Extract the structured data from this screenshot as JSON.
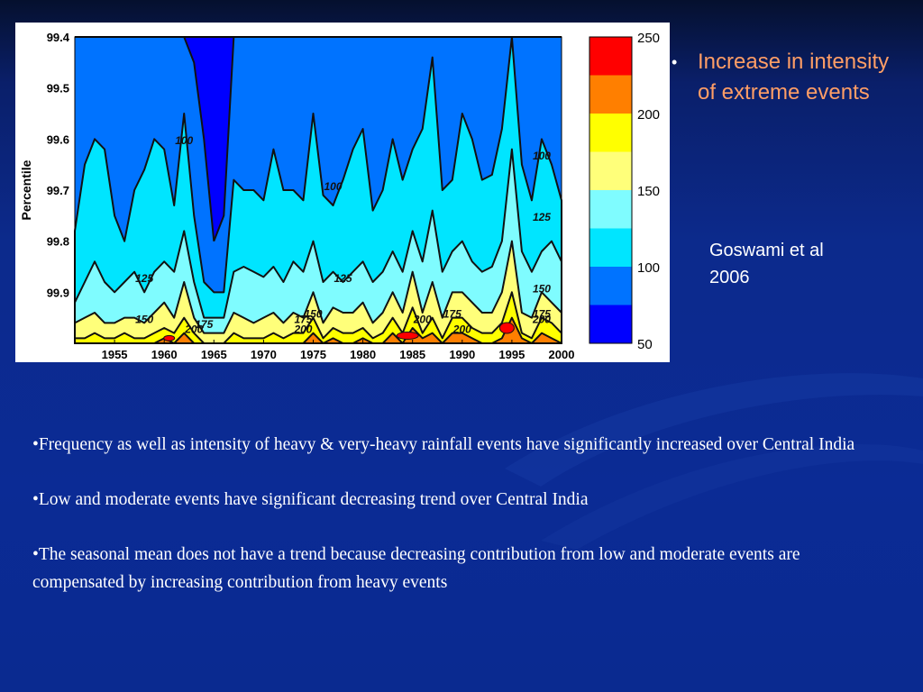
{
  "slide": {
    "heading_bullet": "•",
    "heading": "Increase in intensity of extreme events",
    "citation_line1": "Goswami et al",
    "citation_line2": "2006",
    "bullets": [
      "•Frequency as well as intensity of heavy & very-heavy rainfall events have significantly increased over Central India",
      "•Low and moderate events have significant decreasing trend over Central India",
      "•The seasonal mean does not have a trend because decreasing contribution from low and moderate events are compensated by increasing contribution from heavy events"
    ]
  },
  "colors": {
    "text_accent": "#ff9e66",
    "text_main": "#ffffff",
    "background": "#0b2b95"
  },
  "chart_data": {
    "type": "heatmap",
    "subtype": "filled-contour",
    "title": "",
    "xlabel": "",
    "ylabel": "Percentile",
    "x_ticks": [
      "1955",
      "1960",
      "1965",
      "1970",
      "1975",
      "1980",
      "1985",
      "1990",
      "1995",
      "2000"
    ],
    "y_ticks": [
      "99.4",
      "99.5",
      "99.6",
      "99.7",
      "99.8",
      "99.9"
    ],
    "xlim": [
      1951,
      2000
    ],
    "ylim": [
      99.4,
      100.0
    ],
    "y_reversed": true,
    "colorbar": {
      "ticks": [
        "250",
        "200",
        "150",
        "100",
        "50"
      ],
      "levels": [
        50,
        75,
        100,
        125,
        150,
        175,
        200,
        225,
        250
      ],
      "colors": [
        "#0000ff",
        "#0073ff",
        "#00e5ff",
        "#7ffcff",
        "#ffff7a",
        "#ffff00",
        "#ff7f00",
        "#ff0000"
      ]
    },
    "contour_labels": [
      {
        "text": "100",
        "year": 1962,
        "pct": 99.61
      },
      {
        "text": "100",
        "year": 1977,
        "pct": 99.7
      },
      {
        "text": "100",
        "year": 1998,
        "pct": 99.64
      },
      {
        "text": "125",
        "year": 1958,
        "pct": 99.88
      },
      {
        "text": "125",
        "year": 1978,
        "pct": 99.88
      },
      {
        "text": "125",
        "year": 1998,
        "pct": 99.76
      },
      {
        "text": "150",
        "year": 1998,
        "pct": 99.9
      },
      {
        "text": "150",
        "year": 1958,
        "pct": 99.96
      },
      {
        "text": "150",
        "year": 1975,
        "pct": 99.95
      },
      {
        "text": "175",
        "year": 1964,
        "pct": 99.97
      },
      {
        "text": "175",
        "year": 1974,
        "pct": 99.96
      },
      {
        "text": "175",
        "year": 1989,
        "pct": 99.95
      },
      {
        "text": "175",
        "year": 1998,
        "pct": 99.95
      },
      {
        "text": "200",
        "year": 1963,
        "pct": 99.98
      },
      {
        "text": "200",
        "year": 1974,
        "pct": 99.98
      },
      {
        "text": "200",
        "year": 1986,
        "pct": 99.96
      },
      {
        "text": "200",
        "year": 1990,
        "pct": 99.98
      },
      {
        "text": "200",
        "year": 1998,
        "pct": 99.96
      }
    ],
    "contour_boundaries_pct": {
      "years": [
        1951,
        1952,
        1953,
        1954,
        1955,
        1956,
        1957,
        1958,
        1959,
        1960,
        1961,
        1962,
        1963,
        1964,
        1965,
        1966,
        1967,
        1968,
        1969,
        1970,
        1971,
        1972,
        1973,
        1974,
        1975,
        1976,
        1977,
        1978,
        1979,
        1980,
        1981,
        1982,
        1983,
        1984,
        1985,
        1986,
        1987,
        1988,
        1989,
        1990,
        1991,
        1992,
        1993,
        1994,
        1995,
        1996,
        1997,
        1998,
        1999,
        2000
      ],
      "c75": [
        99.4,
        99.4,
        99.4,
        99.4,
        99.4,
        99.4,
        99.4,
        99.4,
        99.4,
        99.4,
        99.4,
        99.4,
        99.45,
        99.6,
        99.8,
        99.75,
        99.4,
        99.4,
        99.4,
        99.4,
        99.4,
        99.4,
        99.4,
        99.4,
        99.4,
        99.4,
        99.4,
        99.4,
        99.4,
        99.4,
        99.4,
        99.4,
        99.4,
        99.4,
        99.4,
        99.4,
        99.4,
        99.4,
        99.4,
        99.4,
        99.4,
        99.4,
        99.4,
        99.4,
        99.4,
        99.4,
        99.4,
        99.4,
        99.4,
        99.4
      ],
      "c100": [
        99.78,
        99.65,
        99.6,
        99.62,
        99.75,
        99.8,
        99.7,
        99.66,
        99.6,
        99.62,
        99.73,
        99.55,
        99.75,
        99.88,
        99.9,
        99.9,
        99.68,
        99.7,
        99.7,
        99.72,
        99.62,
        99.7,
        99.7,
        99.72,
        99.55,
        99.71,
        99.73,
        99.68,
        99.62,
        99.58,
        99.74,
        99.7,
        99.6,
        99.68,
        99.62,
        99.58,
        99.44,
        99.7,
        99.68,
        99.55,
        99.6,
        99.68,
        99.67,
        99.58,
        99.4,
        99.65,
        99.72,
        99.6,
        99.65,
        99.72
      ],
      "c125": [
        99.92,
        99.88,
        99.84,
        99.88,
        99.9,
        99.88,
        99.86,
        99.9,
        99.86,
        99.84,
        99.86,
        99.78,
        99.88,
        99.95,
        99.95,
        99.95,
        99.86,
        99.85,
        99.86,
        99.87,
        99.85,
        99.88,
        99.84,
        99.86,
        99.8,
        99.88,
        99.86,
        99.88,
        99.86,
        99.84,
        99.88,
        99.86,
        99.82,
        99.86,
        99.78,
        99.84,
        99.74,
        99.86,
        99.82,
        99.8,
        99.84,
        99.86,
        99.85,
        99.8,
        99.62,
        99.82,
        99.86,
        99.82,
        99.8,
        99.84
      ],
      "c150": [
        99.96,
        99.95,
        99.94,
        99.96,
        99.96,
        99.95,
        99.95,
        99.96,
        99.94,
        99.92,
        99.95,
        99.88,
        99.95,
        99.98,
        99.98,
        99.98,
        99.94,
        99.95,
        99.96,
        99.95,
        99.94,
        99.96,
        99.94,
        99.95,
        99.9,
        99.96,
        99.93,
        99.94,
        99.94,
        99.92,
        99.96,
        99.94,
        99.9,
        99.94,
        99.86,
        99.94,
        99.88,
        99.95,
        99.9,
        99.9,
        99.92,
        99.94,
        99.94,
        99.9,
        99.8,
        99.94,
        99.95,
        99.9,
        99.92,
        99.94
      ],
      "c175": [
        99.99,
        99.99,
        99.98,
        99.99,
        99.99,
        99.98,
        99.99,
        99.99,
        99.98,
        99.97,
        99.98,
        99.95,
        99.98,
        100.0,
        100.0,
        100.0,
        99.98,
        99.99,
        99.99,
        99.99,
        99.98,
        99.99,
        99.98,
        99.98,
        99.95,
        99.99,
        99.97,
        99.98,
        99.98,
        99.97,
        99.99,
        99.98,
        99.95,
        99.98,
        99.93,
        99.98,
        99.95,
        99.99,
        99.95,
        99.95,
        99.97,
        99.98,
        99.98,
        99.96,
        99.9,
        99.98,
        99.99,
        99.95,
        99.96,
        99.98
      ],
      "c200": [
        100.0,
        100.0,
        100.0,
        100.0,
        100.0,
        100.0,
        100.0,
        100.0,
        100.0,
        99.99,
        100.0,
        99.98,
        100.0,
        100.0,
        100.0,
        100.0,
        100.0,
        100.0,
        100.0,
        100.0,
        100.0,
        100.0,
        100.0,
        100.0,
        99.98,
        100.0,
        99.99,
        100.0,
        100.0,
        99.99,
        100.0,
        100.0,
        99.98,
        100.0,
        99.97,
        99.99,
        99.98,
        100.0,
        99.98,
        99.98,
        99.99,
        100.0,
        100.0,
        99.99,
        99.95,
        99.99,
        100.0,
        99.98,
        99.99,
        100.0
      ]
    }
  }
}
